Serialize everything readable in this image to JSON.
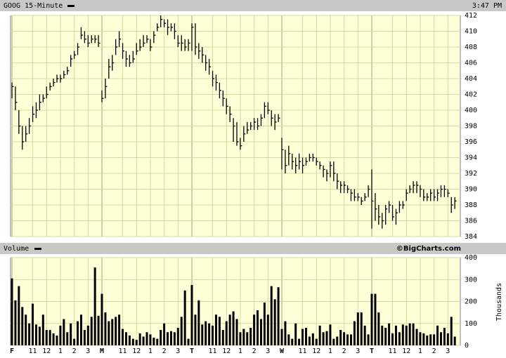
{
  "chart_data": [
    {
      "type": "ohlc",
      "title": "GOOG 15-Minute",
      "time": "3:47 PM",
      "color": "#000000",
      "grid": true,
      "ylim": [
        384,
        412
      ],
      "yticks": [
        384,
        386,
        388,
        390,
        392,
        394,
        396,
        398,
        400,
        402,
        404,
        406,
        408,
        410,
        412
      ],
      "high": [
        403.5,
        403,
        400,
        398,
        398,
        399,
        400.5,
        401,
        402,
        402,
        403,
        403.5,
        404,
        404.5,
        404.5,
        405,
        405.5,
        407,
        407.5,
        408.5,
        410.5,
        410,
        409.5,
        409.5,
        409.5,
        409.5,
        402.5,
        404,
        406.5,
        407,
        409,
        410,
        408.5,
        407.5,
        407,
        407.5,
        408.5,
        409,
        409.5,
        409.5,
        409,
        410,
        411,
        412,
        411.5,
        411.5,
        411,
        411,
        409.5,
        409.5,
        409,
        409,
        411,
        411,
        408.5,
        408,
        407,
        406.5,
        405,
        404.5,
        403.5,
        402.5,
        401.5,
        400.5,
        399,
        398.5,
        396.5,
        398,
        398.5,
        398.5,
        399,
        399,
        399.5,
        401,
        401,
        400,
        399.5,
        399.5,
        396.5,
        395,
        395.5,
        394.5,
        394,
        394.5,
        394,
        394,
        394.5,
        394.5,
        394,
        393.5,
        393,
        392.5,
        393.5,
        393.5,
        392,
        391,
        391,
        390.5,
        390,
        390,
        389.5,
        389,
        389.5,
        390.5,
        392.5,
        389.5,
        388,
        387,
        388,
        388.5,
        388,
        387.5,
        388.5,
        388.5,
        390,
        390.5,
        391,
        391,
        390.5,
        390,
        389.5,
        390,
        390,
        390,
        390.5,
        390.5,
        390,
        389,
        389
      ],
      "low": [
        401.5,
        400,
        397,
        395,
        396,
        397,
        398.5,
        399,
        400,
        401,
        401.5,
        402.5,
        403,
        403.5,
        403.5,
        404,
        404.5,
        405.5,
        406.5,
        407,
        409,
        408.5,
        408,
        408.5,
        408.5,
        408,
        401,
        401.5,
        404,
        405,
        407,
        408,
        406.5,
        405.5,
        405.5,
        406,
        407,
        407.5,
        408,
        408.5,
        407.5,
        408.5,
        410,
        410.5,
        410.5,
        409.5,
        410,
        409,
        408,
        407.5,
        407.5,
        407.5,
        407.5,
        407,
        406.5,
        406,
        405,
        404.5,
        403,
        402.5,
        401.5,
        400.5,
        399.5,
        398.5,
        396,
        395.5,
        395,
        396,
        397,
        397.5,
        397.5,
        397.5,
        398,
        399,
        399.5,
        398,
        397.5,
        398.5,
        392.5,
        392,
        393,
        392.5,
        392,
        392.5,
        392,
        393,
        393.5,
        393.5,
        393,
        392.5,
        391.5,
        391,
        391.5,
        391,
        390,
        389.5,
        389.5,
        389.5,
        388.5,
        388.5,
        388.5,
        388,
        388.5,
        389,
        385,
        386,
        385.5,
        385,
        385.5,
        387,
        386,
        385.5,
        387,
        387.5,
        388.5,
        389.5,
        389.5,
        389.5,
        389,
        388.5,
        388.5,
        388.5,
        388.5,
        388.5,
        389,
        389,
        389,
        387,
        387.5
      ],
      "close": [
        403,
        401,
        398,
        396,
        397,
        398,
        399.5,
        400,
        401,
        401.5,
        402,
        403,
        403.5,
        404,
        404,
        404.5,
        405,
        406.5,
        407,
        408,
        409.5,
        409,
        408.5,
        409,
        409,
        408.5,
        401.5,
        403,
        405.5,
        406,
        408,
        409,
        407.5,
        406.5,
        406,
        406.5,
        407.5,
        408,
        408.5,
        409,
        408,
        409.5,
        410.5,
        411.5,
        411,
        410.5,
        410.5,
        410,
        408.5,
        408.5,
        408,
        408.5,
        410.5,
        408,
        407.5,
        407,
        406,
        405.5,
        404,
        403.5,
        402.5,
        401.5,
        400.5,
        399.5,
        398,
        396,
        395.5,
        397,
        397.5,
        398,
        398.5,
        398,
        399,
        400.5,
        400,
        399,
        398.5,
        399,
        395,
        393,
        394.5,
        393.5,
        393,
        393.5,
        393,
        393.5,
        394,
        394,
        393.5,
        393,
        392.5,
        392,
        393,
        392,
        391,
        390.5,
        390.5,
        390,
        389.5,
        389,
        389,
        388.5,
        389,
        390,
        388.5,
        387.5,
        386.5,
        386,
        387.5,
        388,
        386.5,
        387,
        388,
        388,
        389.5,
        390,
        390.5,
        390.5,
        390,
        389,
        389,
        389.5,
        389,
        389.5,
        390,
        390,
        389.5,
        388,
        388.5
      ]
    },
    {
      "type": "bar",
      "title": "Volume",
      "credit": "©BigCharts.com",
      "y_label": "Thousands",
      "color": "#000000",
      "grid": true,
      "ylim": [
        0,
        400
      ],
      "yticks": [
        0,
        100,
        200,
        300,
        400
      ],
      "xticks": [
        {
          "value": 0,
          "label": "F"
        },
        {
          "value": 6,
          "label": "11"
        },
        {
          "value": 10,
          "label": "12"
        },
        {
          "value": 14,
          "label": "1"
        },
        {
          "value": 18,
          "label": "2"
        },
        {
          "value": 22,
          "label": "3"
        },
        {
          "value": 26,
          "label": "M"
        },
        {
          "value": 32,
          "label": "11"
        },
        {
          "value": 36,
          "label": "12"
        },
        {
          "value": 40,
          "label": "1"
        },
        {
          "value": 44,
          "label": "2"
        },
        {
          "value": 48,
          "label": "3"
        },
        {
          "value": 52,
          "label": "T"
        },
        {
          "value": 58,
          "label": "11"
        },
        {
          "value": 62,
          "label": "12"
        },
        {
          "value": 66,
          "label": "1"
        },
        {
          "value": 70,
          "label": "2"
        },
        {
          "value": 74,
          "label": "3"
        },
        {
          "value": 78,
          "label": "W"
        },
        {
          "value": 84,
          "label": "11"
        },
        {
          "value": 88,
          "label": "12"
        },
        {
          "value": 92,
          "label": "1"
        },
        {
          "value": 96,
          "label": "2"
        },
        {
          "value": 100,
          "label": "3"
        },
        {
          "value": 104,
          "label": "T"
        },
        {
          "value": 110,
          "label": "11"
        },
        {
          "value": 114,
          "label": "12"
        },
        {
          "value": 118,
          "label": "1"
        },
        {
          "value": 122,
          "label": "2"
        },
        {
          "value": 126,
          "label": "3"
        }
      ],
      "values": [
        305,
        205,
        270,
        175,
        140,
        100,
        190,
        95,
        85,
        140,
        70,
        70,
        55,
        45,
        90,
        120,
        60,
        100,
        30,
        110,
        140,
        70,
        90,
        130,
        355,
        135,
        235,
        150,
        110,
        120,
        130,
        140,
        75,
        60,
        45,
        30,
        25,
        55,
        40,
        60,
        50,
        35,
        30,
        70,
        100,
        60,
        65,
        60,
        80,
        130,
        250,
        30,
        275,
        140,
        205,
        95,
        110,
        100,
        90,
        140,
        130,
        70,
        110,
        140,
        155,
        120,
        60,
        75,
        60,
        80,
        140,
        160,
        120,
        195,
        140,
        270,
        210,
        265,
        75,
        110,
        50,
        30,
        100,
        30,
        75,
        80,
        40,
        55,
        30,
        90,
        60,
        65,
        95,
        30,
        40,
        70,
        60,
        50,
        50,
        110,
        150,
        150,
        90,
        50,
        235,
        235,
        150,
        90,
        80,
        100,
        55,
        90,
        60,
        95,
        90,
        100,
        100,
        75,
        60,
        55,
        45,
        50,
        50,
        90,
        60,
        80,
        55,
        130,
        40
      ]
    }
  ]
}
